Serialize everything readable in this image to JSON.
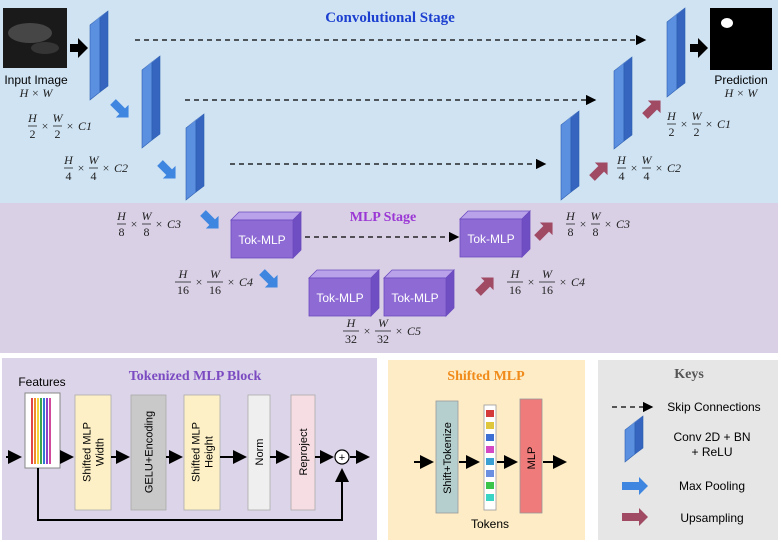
{
  "stages": {
    "conv_title": "Convolutional Stage",
    "mlp_title": "MLP Stage"
  },
  "io": {
    "input_label": "Input Image",
    "input_dims": "H × W",
    "output_label": "Prediction",
    "output_dims": "H × W"
  },
  "encoder_dims": [
    {
      "num": "H",
      "den": "2",
      "num2": "W",
      "den2": "2",
      "ch": "C1"
    },
    {
      "num": "H",
      "den": "4",
      "num2": "W",
      "den2": "4",
      "ch": "C2"
    },
    {
      "num": "H",
      "den": "8",
      "num2": "W",
      "den2": "8",
      "ch": "C3"
    },
    {
      "num": "H",
      "den": "16",
      "num2": "W",
      "den2": "16",
      "ch": "C4"
    },
    {
      "num": "H",
      "den": "32",
      "num2": "W",
      "den2": "32",
      "ch": "C5"
    }
  ],
  "decoder_dims": [
    {
      "num": "H",
      "den": "2",
      "num2": "W",
      "den2": "2",
      "ch": "C1"
    },
    {
      "num": "H",
      "den": "4",
      "num2": "W",
      "den2": "4",
      "ch": "C2"
    },
    {
      "num": "H",
      "den": "8",
      "num2": "W",
      "den2": "8",
      "ch": "C3"
    },
    {
      "num": "H",
      "den": "16",
      "num2": "W",
      "den2": "16",
      "ch": "C4"
    }
  ],
  "tok_mlp_label": "Tok-MLP",
  "tok_block": {
    "title": "Tokenized MLP Block",
    "features_label": "Features",
    "steps": [
      "Shifted MLP Width",
      "GELU+Encoding",
      "Shifted MLP Height",
      "Norm",
      "Reproject"
    ],
    "plus": "+"
  },
  "shifted": {
    "title": "Shifted MLP",
    "step1": "Shift+Tokenize",
    "tokens_label": "Tokens",
    "mlp_label": "MLP"
  },
  "keys": {
    "title": "Keys",
    "skip": "Skip Connections",
    "conv_line1": "Conv 2D + BN",
    "conv_line2": "+ ReLU",
    "pool": "Max Pooling",
    "up": "Upsampling"
  },
  "colors": {
    "conv_bg": "#cfe3f3",
    "mlp_bg": "#d9d0e6",
    "tok_bg": "#dcd4e8",
    "shifted_bg": "#fdecc5",
    "keys_bg": "#e6e6e6",
    "conv_blue": "#4a7fd8",
    "tok_purple": "#8e6bd4",
    "pool_blue": "#3f86e0",
    "up_maroon": "#a04a64",
    "title_blue": "#1c3fd0",
    "title_purple": "#9b37d4",
    "title_orange": "#f08a1a"
  }
}
